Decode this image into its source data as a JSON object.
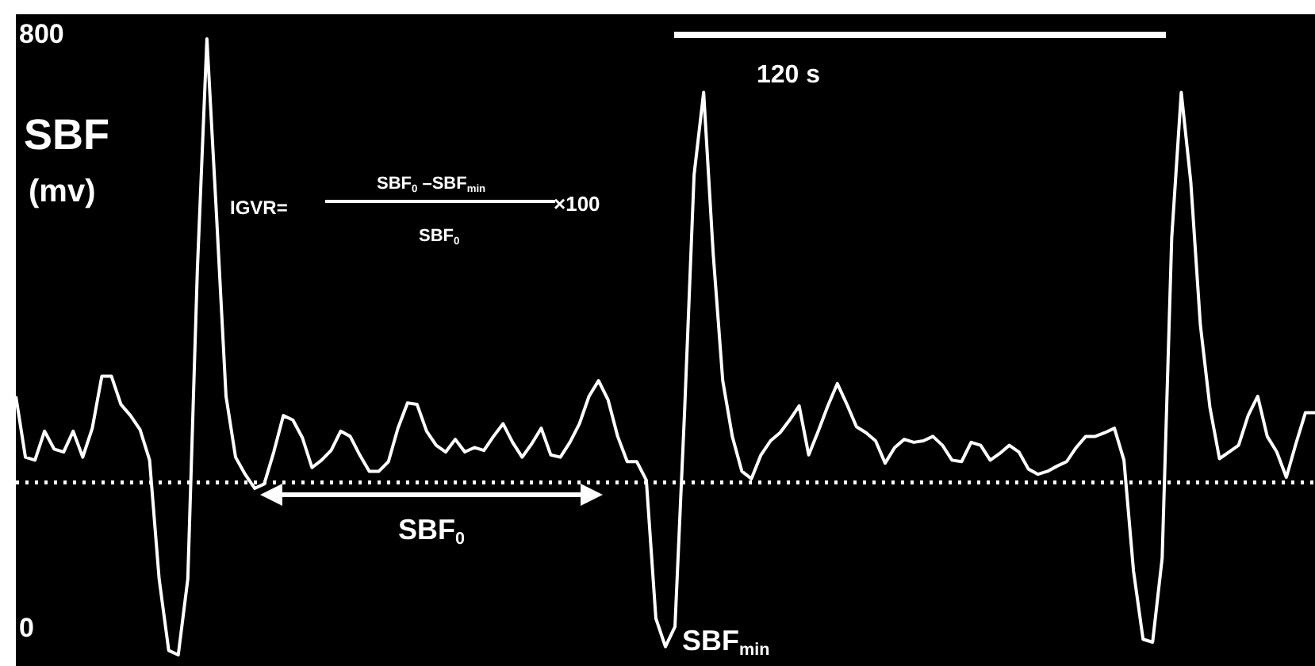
{
  "chart_data": {
    "type": "line",
    "ylabel": "SBF (mv)",
    "categories": [
      null,
      null,
      null,
      null,
      null,
      null,
      null,
      null,
      null,
      null,
      null,
      null,
      null,
      null,
      null,
      null,
      null,
      null,
      null,
      null,
      null,
      null,
      null,
      null,
      null,
      null,
      null,
      null,
      null,
      null,
      null,
      null,
      null,
      null,
      null,
      null,
      null,
      null,
      null,
      null,
      null,
      null,
      null,
      null,
      null,
      null,
      null,
      null,
      null,
      null,
      null,
      null,
      null,
      null,
      null,
      null,
      null,
      null,
      null,
      null,
      null,
      null,
      null,
      null,
      null,
      null,
      null,
      null,
      null,
      null,
      null,
      null,
      null,
      null,
      null,
      null,
      null,
      null,
      null,
      null,
      null,
      null,
      null,
      null,
      null,
      null,
      null,
      null,
      null,
      null,
      null,
      null,
      null,
      null,
      null,
      null,
      null,
      null,
      null,
      null,
      null,
      null,
      null,
      null,
      null,
      null,
      null,
      null,
      null,
      null,
      null,
      null,
      null,
      null,
      null,
      null,
      null,
      null,
      null,
      null,
      null,
      null,
      null,
      null,
      null,
      null,
      null,
      null,
      null,
      null,
      null,
      null,
      null,
      null,
      null,
      null,
      null
    ],
    "series": [
      {
        "color": "#ffffff",
        "values": [
          314,
          232,
          228,
          267,
          243,
          239,
          267,
          232,
          271,
          341,
          341,
          303,
          288,
          269,
          228,
          68,
          -28,
          -34,
          68,
          484,
          795,
          559,
          314,
          232,
          209,
          190,
          196,
          239,
          288,
          282,
          258,
          218,
          228,
          241,
          267,
          260,
          235,
          213,
          213,
          226,
          271,
          305,
          303,
          267,
          248,
          239,
          256,
          239,
          245,
          241,
          260,
          277,
          252,
          232,
          250,
          271,
          235,
          232,
          252,
          277,
          314,
          335,
          309,
          260,
          226,
          226,
          201,
          15,
          -23,
          4,
          292,
          612,
          723,
          506,
          335,
          260,
          213,
          203,
          235,
          254,
          265,
          282,
          301,
          235,
          267,
          301,
          331,
          303,
          273,
          265,
          254,
          224,
          245,
          256,
          252,
          254,
          260,
          248,
          228,
          226,
          252,
          248,
          228,
          237,
          248,
          239,
          216,
          209,
          213,
          220,
          226,
          245,
          260,
          260,
          265,
          271,
          228,
          79,
          -13,
          -17,
          96,
          527,
          723,
          602,
          410,
          299,
          230,
          239,
          248,
          288,
          314,
          260,
          239,
          205,
          250,
          292,
          292
        ]
      }
    ],
    "ylim": [
      -49,
      828
    ],
    "yticks": [
      0,
      800
    ],
    "tick_labels": "y",
    "legend": false,
    "marker": "none",
    "ref_lines": [
      {
        "axis": "y",
        "value": 198,
        "color": "#ffffff",
        "line_style": "dotted"
      }
    ],
    "annotations": [
      "IGVR=",
      "SBF$_{0}$ –SBF$_{min}$",
      "SBF$_{0}$",
      "×100",
      "120 s",
      "SBF$_{0}$",
      "SBF$_{min}$"
    ]
  }
}
